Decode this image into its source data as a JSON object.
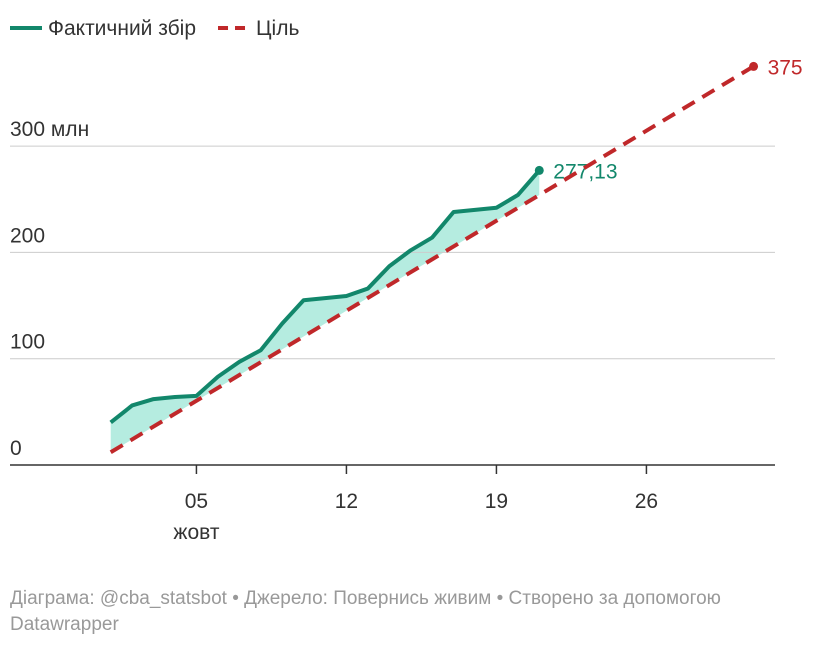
{
  "chart_data": {
    "type": "line",
    "legend_position": "top-left",
    "x_secondary_label": "жовт",
    "xlim": [
      -3.7,
      32
    ],
    "xticks": [
      {
        "value": 5,
        "label": "05"
      },
      12,
      19,
      26
    ],
    "ylim": [
      0,
      375
    ],
    "yticks": [
      0,
      100,
      200,
      {
        "value": 300,
        "label": "300 млн"
      }
    ],
    "grid": true,
    "fill_between": true,
    "fill_color": "#b5ece0",
    "series": [
      {
        "name": "Фактичний збір",
        "color": "#12876b",
        "style": "solid",
        "x": [
          1,
          2,
          3,
          4,
          5,
          6,
          7,
          8,
          9,
          10,
          11,
          12,
          13,
          14,
          15,
          16,
          17,
          18,
          19,
          20,
          21
        ],
        "values": [
          40,
          56,
          62,
          64,
          65,
          83,
          97,
          108,
          133,
          155,
          157,
          159,
          166,
          187,
          202,
          214,
          238,
          240,
          242,
          254,
          277.13
        ],
        "value_labels": [
          null,
          null,
          null,
          null,
          null,
          null,
          null,
          null,
          null,
          null,
          null,
          null,
          null,
          null,
          null,
          null,
          null,
          null,
          null,
          null,
          "277,13"
        ]
      },
      {
        "name": "Ціль",
        "color": "#c0282a",
        "style": "dashed",
        "x": [
          1,
          31
        ],
        "values": [
          12,
          375
        ]
      }
    ],
    "source": "Діаграма: @cba_statsbot • Джерело: Повернись живим • Створено за допомогою Datawrapper"
  }
}
